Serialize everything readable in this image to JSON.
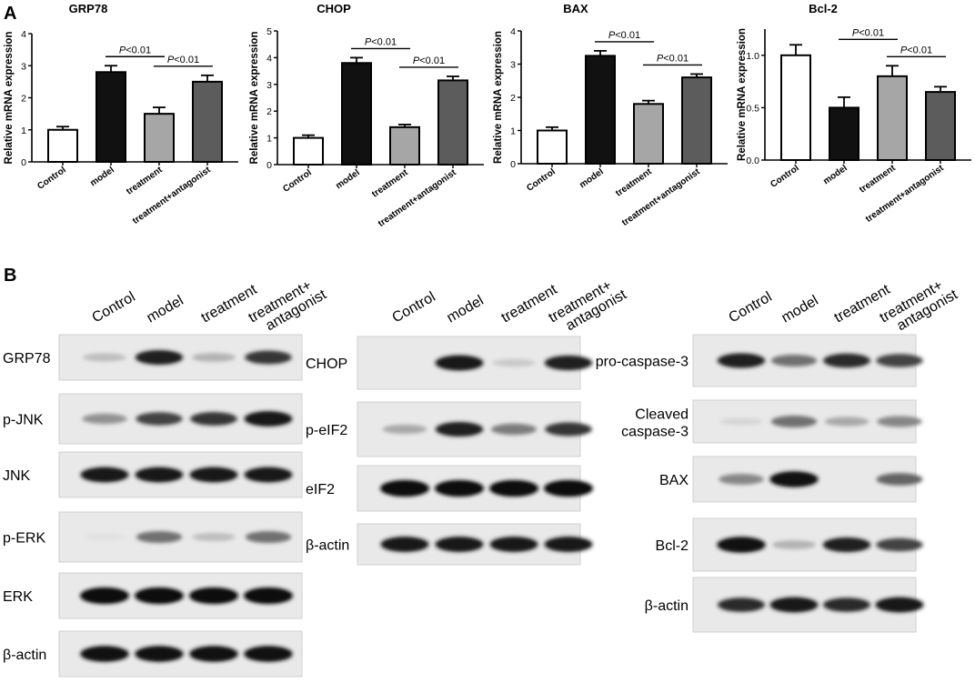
{
  "panel_a_label": "A",
  "panel_b_label": "B",
  "significance_label": "P<0.01",
  "colors": {
    "Control": "#ffffff",
    "model": "#111111",
    "treatment": "#a6a6a6",
    "treatment+antagonist": "#5c5c5c"
  },
  "chart_data": [
    {
      "type": "bar",
      "title": "GRP78",
      "ylabel": "Relative mRNA expression",
      "categories": [
        "Control",
        "model",
        "treatment",
        "treatment+antagonist"
      ],
      "values": [
        1.0,
        2.8,
        1.5,
        2.5
      ],
      "errors": [
        0.1,
        0.2,
        0.2,
        0.2
      ],
      "ylim": [
        0,
        4
      ],
      "yticks": [
        "0",
        "1",
        "2",
        "3",
        "4"
      ],
      "tick_values": [
        0,
        1,
        2,
        3,
        4
      ],
      "annotations": [
        {
          "text": "P<0.01",
          "from": "model",
          "to": "treatment"
        },
        {
          "text": "P<0.01",
          "from": "treatment",
          "to": "treatment+antagonist"
        }
      ]
    },
    {
      "type": "bar",
      "title": "CHOP",
      "ylabel": "Relative mRNA expression",
      "categories": [
        "Control",
        "model",
        "treatment",
        "treatment+antagonist"
      ],
      "values": [
        1.0,
        3.8,
        1.4,
        3.15
      ],
      "errors": [
        0.1,
        0.2,
        0.1,
        0.15
      ],
      "ylim": [
        0,
        5
      ],
      "yticks": [
        "0",
        "1",
        "2",
        "3",
        "4",
        "5"
      ],
      "tick_values": [
        0,
        1,
        2,
        3,
        4,
        5
      ],
      "annotations": [
        {
          "text": "P<0.01",
          "from": "model",
          "to": "treatment"
        },
        {
          "text": "P<0.01",
          "from": "treatment",
          "to": "treatment+antagonist"
        }
      ]
    },
    {
      "type": "bar",
      "title": "BAX",
      "ylabel": "Relative mRNA expression",
      "categories": [
        "Control",
        "model",
        "treatment",
        "treatment+antagonist"
      ],
      "values": [
        1.0,
        3.25,
        1.8,
        2.6
      ],
      "errors": [
        0.1,
        0.15,
        0.1,
        0.1
      ],
      "ylim": [
        0,
        4
      ],
      "yticks": [
        "0",
        "1",
        "2",
        "3",
        "4"
      ],
      "tick_values": [
        0,
        1,
        2,
        3,
        4
      ],
      "annotations": [
        {
          "text": "P<0.01",
          "from": "model",
          "to": "treatment"
        },
        {
          "text": "P<0.01",
          "from": "treatment",
          "to": "treatment+antagonist"
        }
      ]
    },
    {
      "type": "bar",
      "title": "Bcl-2",
      "ylabel": "Relative mRNA expression",
      "categories": [
        "Control",
        "model",
        "treatment",
        "treatment+antagonist"
      ],
      "values": [
        1.0,
        0.5,
        0.8,
        0.65
      ],
      "errors": [
        0.1,
        0.1,
        0.1,
        0.05
      ],
      "ylim": [
        0,
        1.25
      ],
      "yticks": [
        "0.0",
        "0.5",
        "1.0"
      ],
      "tick_values": [
        0,
        0.5,
        1.0
      ],
      "annotations": [
        {
          "text": "P<0.01",
          "from": "model",
          "to": "treatment"
        },
        {
          "text": "P<0.01",
          "from": "treatment",
          "to": "treatment+antagonist"
        }
      ]
    }
  ],
  "blots": [
    {
      "lane_labels": [
        "Control",
        "model",
        "treatment",
        "treatment+\nantagonist"
      ],
      "rows": [
        {
          "label": "GRP78",
          "intensities": [
            0.2,
            0.85,
            0.25,
            0.75
          ]
        },
        {
          "label": "p-JNK",
          "intensities": [
            0.4,
            0.7,
            0.75,
            0.9
          ]
        },
        {
          "label": "JNK",
          "intensities": [
            0.9,
            0.9,
            0.9,
            0.9
          ]
        },
        {
          "label": "p-ERK",
          "intensities": [
            0.05,
            0.55,
            0.2,
            0.55
          ]
        },
        {
          "label": "ERK",
          "intensities": [
            1.0,
            1.0,
            1.0,
            1.0
          ]
        },
        {
          "label": "β-actin",
          "intensities": [
            0.95,
            0.95,
            0.95,
            0.95
          ]
        }
      ]
    },
    {
      "lane_labels": [
        "Control",
        "model",
        "treatment",
        "treatment+\nantagonist"
      ],
      "rows": [
        {
          "label": "CHOP",
          "intensities": [
            0.0,
            0.9,
            0.15,
            0.85
          ]
        },
        {
          "label": "p-eIF2",
          "intensities": [
            0.3,
            0.85,
            0.5,
            0.75
          ]
        },
        {
          "label": "eIF2",
          "intensities": [
            1.0,
            1.0,
            1.0,
            1.0
          ]
        },
        {
          "label": "β-actin",
          "intensities": [
            0.9,
            0.9,
            0.9,
            0.9
          ]
        }
      ]
    },
    {
      "lane_labels": [
        "Control",
        "model",
        "treatment",
        "treatment+\nantagonist"
      ],
      "rows": [
        {
          "label": "pro-caspase-3",
          "intensities": [
            0.85,
            0.55,
            0.8,
            0.7
          ]
        },
        {
          "label": "Cleaved\ncaspase-3",
          "intensities": [
            0.1,
            0.55,
            0.3,
            0.45
          ]
        },
        {
          "label": "BAX",
          "intensities": [
            0.45,
            0.95,
            0.0,
            0.6
          ]
        },
        {
          "label": "Bcl-2",
          "intensities": [
            0.95,
            0.25,
            0.85,
            0.7
          ]
        },
        {
          "label": "β-actin",
          "intensities": [
            0.8,
            0.9,
            0.8,
            0.9
          ]
        }
      ]
    }
  ]
}
